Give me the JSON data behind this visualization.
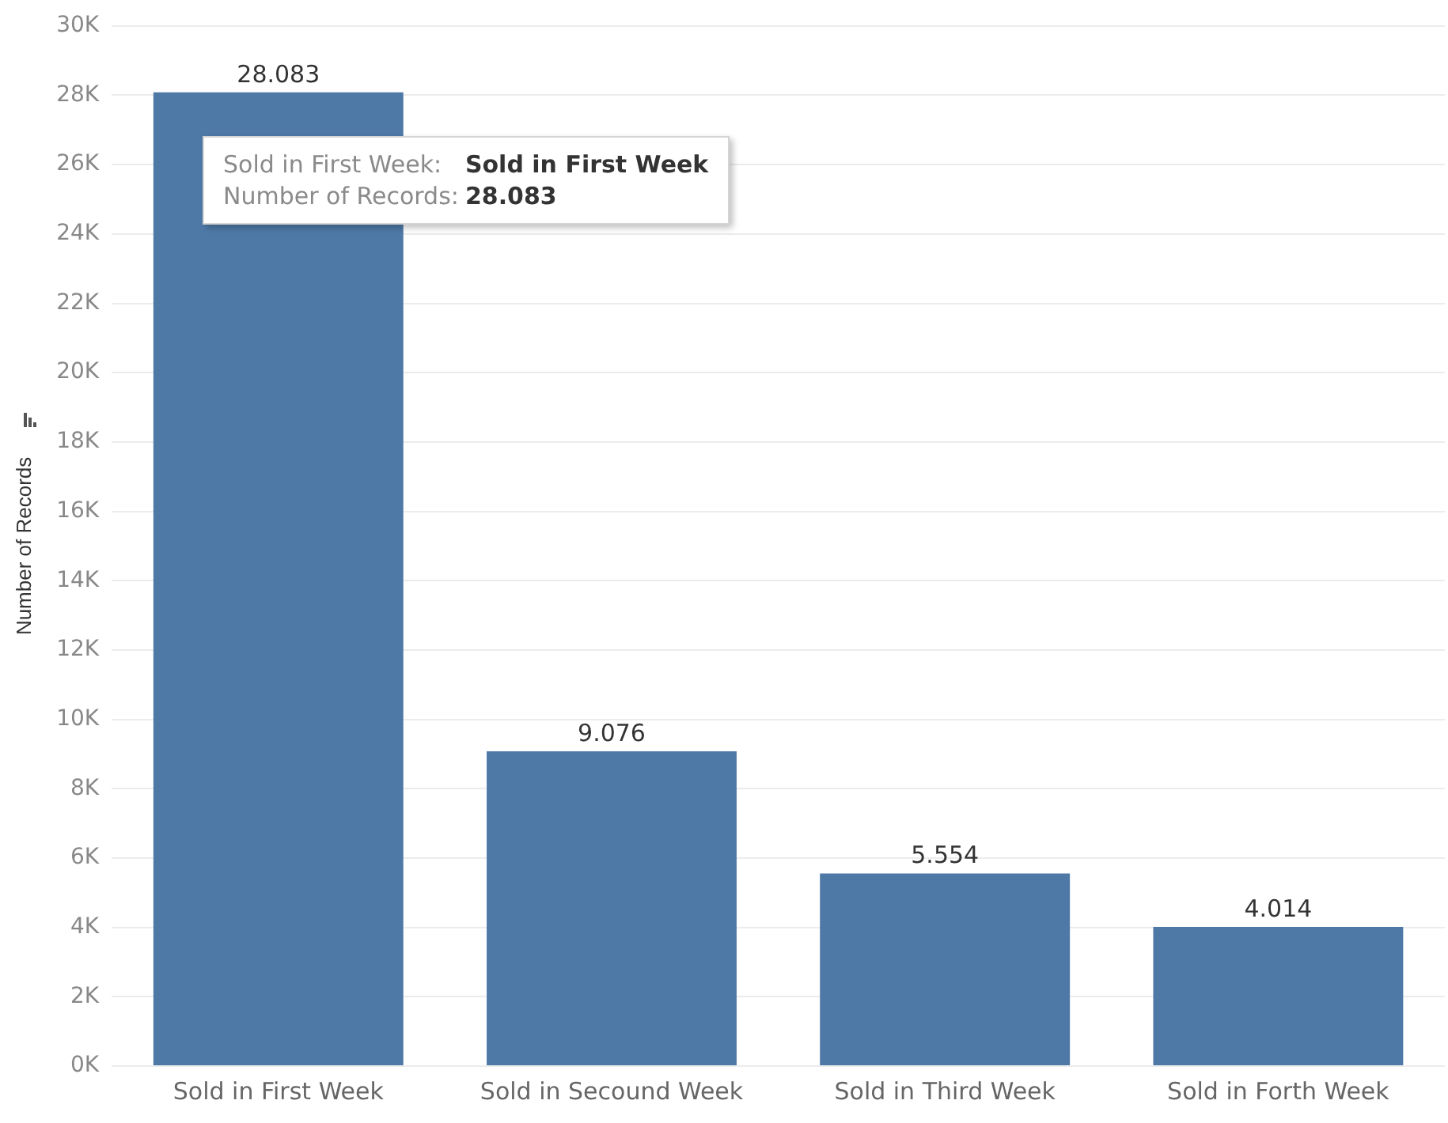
{
  "chart_data": {
    "type": "bar",
    "ylabel": "Number of Records",
    "categories": [
      "Sold in First Week",
      "Sold in Secound Week",
      "Sold in Third Week",
      "Sold in Forth Week"
    ],
    "values": [
      28083,
      9076,
      5554,
      4014
    ],
    "value_labels": [
      "28.083",
      "9.076",
      "5.554",
      "4.014"
    ],
    "color": "#4e79a7",
    "ylim": [
      0,
      30000
    ],
    "yticks": [
      {
        "value": 0,
        "label": "0K"
      },
      {
        "value": 2000,
        "label": "2K"
      },
      {
        "value": 4000,
        "label": "4K"
      },
      {
        "value": 6000,
        "label": "6K"
      },
      {
        "value": 8000,
        "label": "8K"
      },
      {
        "value": 10000,
        "label": "10K"
      },
      {
        "value": 12000,
        "label": "12K"
      },
      {
        "value": 14000,
        "label": "14K"
      },
      {
        "value": 16000,
        "label": "16K"
      },
      {
        "value": 18000,
        "label": "18K"
      },
      {
        "value": 20000,
        "label": "20K"
      },
      {
        "value": 22000,
        "label": "22K"
      },
      {
        "value": 24000,
        "label": "24K"
      },
      {
        "value": 26000,
        "label": "26K"
      },
      {
        "value": 28000,
        "label": "28K"
      },
      {
        "value": 30000,
        "label": "30K"
      }
    ],
    "grid": "y",
    "annotations": [
      "Sold in First Week:",
      "Sold in First Week",
      "Number of Records:",
      "28.083"
    ]
  }
}
